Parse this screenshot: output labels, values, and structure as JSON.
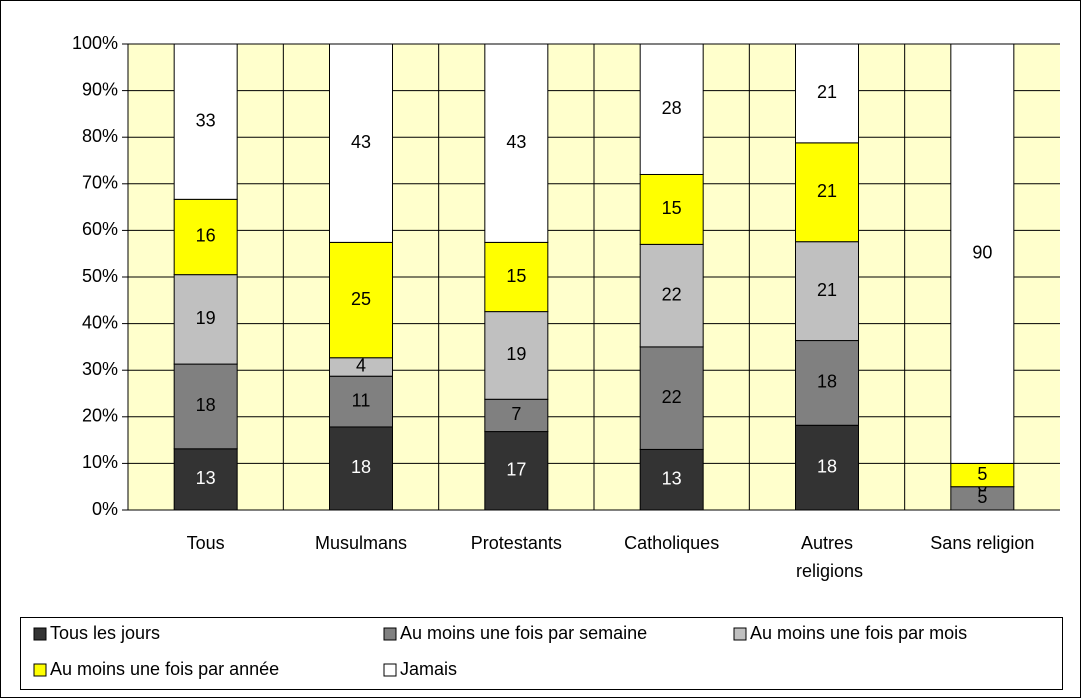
{
  "chart_data": {
    "type": "bar",
    "stacked_percent": true,
    "categories": [
      "Tous",
      "Musulmans",
      "Protestants",
      "Catholiques",
      "Autres religions",
      "Sans religion"
    ],
    "series": [
      {
        "name": "Tous les jours",
        "color": "#333333",
        "label_color": "#ffffff",
        "values": [
          13,
          18,
          17,
          13,
          18,
          0
        ]
      },
      {
        "name": "Au moins une fois par semaine",
        "color": "#808080",
        "label_color": "#000000",
        "values": [
          18,
          11,
          7,
          22,
          18,
          5
        ]
      },
      {
        "name": "Au moins une fois par mois",
        "color": "#c0c0c0",
        "label_color": "#000000",
        "values": [
          19,
          4,
          19,
          22,
          21,
          0
        ]
      },
      {
        "name": "Au moins une fois par année",
        "color": "#ffff00",
        "label_color": "#000000",
        "values": [
          16,
          25,
          15,
          15,
          21,
          5
        ]
      },
      {
        "name": "Jamais",
        "color": "#ffffff",
        "label_color": "#000000",
        "values": [
          33,
          43,
          43,
          28,
          21,
          90
        ]
      }
    ],
    "ylim": [
      0,
      100
    ],
    "yticks": [
      {
        "value": 0,
        "label": "0%"
      },
      {
        "value": 10,
        "label": "10%"
      },
      {
        "value": 20,
        "label": "20%"
      },
      {
        "value": 30,
        "label": "30%"
      },
      {
        "value": 40,
        "label": "40%"
      },
      {
        "value": 50,
        "label": "50%"
      },
      {
        "value": 60,
        "label": "60%"
      },
      {
        "value": 70,
        "label": "70%"
      },
      {
        "value": 80,
        "label": "80%"
      },
      {
        "value": 90,
        "label": "90%"
      },
      {
        "value": 100,
        "label": "100%"
      }
    ],
    "grid": true,
    "legend": "bottom",
    "plot_background": "#ffffcc"
  }
}
